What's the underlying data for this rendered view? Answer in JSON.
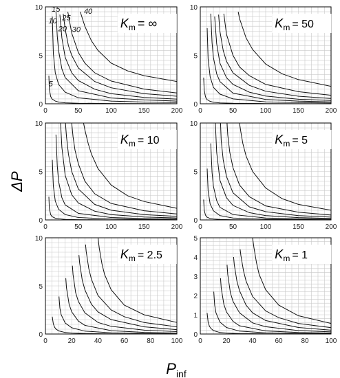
{
  "figure": {
    "ylabel": "ΔP",
    "xlabel_main": "P",
    "xlabel_sub": "inf"
  },
  "chart_data": [
    {
      "type": "line",
      "k_label": "K",
      "k_sub": "m",
      "k_value": "= ∞",
      "xlim": [
        0,
        200
      ],
      "ylim": [
        0,
        10
      ],
      "x_ticks": [
        0,
        50,
        100,
        150,
        200
      ],
      "y_ticks": [
        0,
        5,
        10
      ],
      "curve_labels": [
        "5",
        "10",
        "15",
        "20",
        "25",
        "30",
        "40"
      ],
      "series": [
        {
          "name": "5",
          "x": [
            5.2,
            6,
            8,
            10,
            15,
            20,
            30,
            50,
            100,
            200
          ],
          "y": [
            2.9,
            1.5,
            0.75,
            0.5,
            0.28,
            0.18,
            0.1,
            0.06,
            0.03,
            0.01
          ]
        },
        {
          "name": "10",
          "x": [
            10.5,
            12,
            15,
            20,
            30,
            50,
            100,
            150,
            200
          ],
          "y": [
            9.0,
            5.2,
            3.2,
            2.0,
            1.2,
            0.62,
            0.28,
            0.18,
            0.12
          ]
        },
        {
          "name": "15",
          "x": [
            16,
            18,
            20,
            25,
            30,
            50,
            100,
            150,
            200
          ],
          "y": [
            9.5,
            7.0,
            5.5,
            3.6,
            2.7,
            1.35,
            0.6,
            0.4,
            0.28
          ]
        },
        {
          "name": "20",
          "x": [
            22,
            25,
            30,
            40,
            50,
            75,
            100,
            150,
            200
          ],
          "y": [
            9.2,
            6.8,
            4.8,
            3.2,
            2.4,
            1.5,
            1.05,
            0.65,
            0.48
          ]
        },
        {
          "name": "25",
          "x": [
            27,
            30,
            35,
            40,
            50,
            75,
            100,
            150,
            200
          ],
          "y": [
            9.3,
            7.7,
            6.0,
            5.0,
            3.7,
            2.3,
            1.65,
            1.05,
            0.78
          ]
        },
        {
          "name": "30",
          "x": [
            34,
            40,
            50,
            60,
            75,
            100,
            150,
            200
          ],
          "y": [
            9.5,
            7.3,
            5.3,
            4.2,
            3.2,
            2.35,
            1.52,
            1.12
          ]
        },
        {
          "name": "40",
          "x": [
            53,
            60,
            70,
            80,
            100,
            125,
            150,
            200
          ],
          "y": [
            9.5,
            8.0,
            6.5,
            5.5,
            4.2,
            3.4,
            2.9,
            2.3
          ]
        }
      ]
    },
    {
      "type": "line",
      "k_label": "K",
      "k_sub": "m",
      "k_value": "= 50",
      "xlim": [
        0,
        200
      ],
      "ylim": [
        0,
        10
      ],
      "x_ticks": [
        0,
        50,
        100,
        150,
        200
      ],
      "y_ticks": [
        0,
        5,
        10
      ],
      "series": [
        {
          "name": "5",
          "x": [
            5.2,
            6,
            8,
            10,
            15,
            20,
            30,
            50,
            100,
            200
          ],
          "y": [
            2.7,
            1.4,
            0.7,
            0.45,
            0.25,
            0.16,
            0.09,
            0.05,
            0.02,
            0.01
          ]
        },
        {
          "name": "10",
          "x": [
            10.5,
            12,
            15,
            20,
            30,
            50,
            100,
            150,
            200
          ],
          "y": [
            7.8,
            4.6,
            2.8,
            1.7,
            1.0,
            0.5,
            0.2,
            0.12,
            0.08
          ]
        },
        {
          "name": "15",
          "x": [
            16,
            18,
            20,
            25,
            30,
            50,
            100,
            150,
            200
          ],
          "y": [
            9.3,
            6.3,
            4.8,
            3.1,
            2.3,
            1.1,
            0.45,
            0.28,
            0.19
          ]
        },
        {
          "name": "20",
          "x": [
            22,
            25,
            30,
            40,
            50,
            75,
            100,
            150,
            200
          ],
          "y": [
            9.0,
            6.2,
            4.2,
            2.7,
            2.0,
            1.2,
            0.8,
            0.47,
            0.33
          ]
        },
        {
          "name": "25",
          "x": [
            28,
            30,
            35,
            40,
            50,
            75,
            100,
            150,
            200
          ],
          "y": [
            9.2,
            7.5,
            5.5,
            4.4,
            3.2,
            1.9,
            1.3,
            0.78,
            0.55
          ]
        },
        {
          "name": "30",
          "x": [
            36,
            40,
            50,
            60,
            75,
            100,
            150,
            200
          ],
          "y": [
            9.3,
            7.2,
            5.0,
            3.8,
            2.9,
            2.0,
            1.25,
            0.88
          ]
        },
        {
          "name": "40",
          "x": [
            58,
            60,
            70,
            80,
            100,
            125,
            150,
            200
          ],
          "y": [
            9.5,
            8.8,
            6.8,
            5.6,
            4.1,
            3.1,
            2.5,
            1.8
          ]
        }
      ]
    },
    {
      "type": "line",
      "k_label": "K",
      "k_sub": "m",
      "k_value": "= 10",
      "xlim": [
        0,
        200
      ],
      "ylim": [
        0,
        10
      ],
      "x_ticks": [
        0,
        50,
        100,
        150,
        200
      ],
      "y_ticks": [
        0,
        5,
        10
      ],
      "series": [
        {
          "name": "5",
          "x": [
            5.2,
            6,
            8,
            10,
            15,
            20,
            30,
            50,
            100,
            200
          ],
          "y": [
            2.4,
            1.2,
            0.55,
            0.35,
            0.18,
            0.12,
            0.06,
            0.03,
            0.01,
            0.0
          ]
        },
        {
          "name": "10",
          "x": [
            10.5,
            12,
            15,
            20,
            30,
            50,
            100,
            150,
            200
          ],
          "y": [
            6.2,
            3.5,
            1.95,
            1.1,
            0.55,
            0.25,
            0.1,
            0.05,
            0.03
          ]
        },
        {
          "name": "15",
          "x": [
            16,
            18,
            20,
            25,
            30,
            50,
            100,
            150,
            200
          ],
          "y": [
            8.8,
            5.6,
            4.0,
            2.3,
            1.55,
            0.68,
            0.25,
            0.14,
            0.1
          ]
        },
        {
          "name": "20",
          "x": [
            23,
            25,
            30,
            40,
            50,
            75,
            100,
            150,
            200
          ],
          "y": [
            10,
            7.5,
            4.6,
            2.6,
            1.75,
            0.9,
            0.55,
            0.3,
            0.2
          ]
        },
        {
          "name": "25",
          "x": [
            30.5,
            32,
            35,
            40,
            50,
            75,
            100,
            150,
            200
          ],
          "y": [
            10,
            8.6,
            6.8,
            5.0,
            3.2,
            1.6,
            1.0,
            0.55,
            0.36
          ]
        },
        {
          "name": "30",
          "x": [
            40,
            42,
            45,
            50,
            60,
            75,
            100,
            150,
            200
          ],
          "y": [
            10,
            8.6,
            7.2,
            5.8,
            4.0,
            2.7,
            1.7,
            0.95,
            0.62
          ]
        },
        {
          "name": "40",
          "x": [
            58,
            60,
            65,
            70,
            80,
            100,
            125,
            150,
            200
          ],
          "y": [
            10,
            9.3,
            7.9,
            6.8,
            5.3,
            3.6,
            2.5,
            1.9,
            1.2
          ]
        }
      ]
    },
    {
      "type": "line",
      "k_label": "K",
      "k_sub": "m",
      "k_value": "= 5",
      "xlim": [
        0,
        200
      ],
      "ylim": [
        0,
        10
      ],
      "x_ticks": [
        0,
        50,
        100,
        150,
        200
      ],
      "y_ticks": [
        0,
        5,
        10
      ],
      "series": [
        {
          "name": "5",
          "x": [
            5.2,
            6,
            8,
            10,
            15,
            20,
            30,
            50,
            100,
            200
          ],
          "y": [
            2.1,
            1.0,
            0.48,
            0.3,
            0.15,
            0.1,
            0.05,
            0.02,
            0.01,
            0.0
          ]
        },
        {
          "name": "10",
          "x": [
            10.5,
            12,
            15,
            20,
            30,
            50,
            100,
            150,
            200
          ],
          "y": [
            5.3,
            3.0,
            1.65,
            0.95,
            0.45,
            0.2,
            0.07,
            0.04,
            0.02
          ]
        },
        {
          "name": "15",
          "x": [
            16,
            18,
            20,
            25,
            30,
            50,
            100,
            150,
            200
          ],
          "y": [
            7.9,
            4.9,
            3.5,
            2.0,
            1.3,
            0.55,
            0.2,
            0.11,
            0.07
          ]
        },
        {
          "name": "20",
          "x": [
            23,
            25,
            30,
            40,
            50,
            75,
            100,
            150,
            200
          ],
          "y": [
            10,
            7.0,
            4.1,
            2.3,
            1.5,
            0.75,
            0.45,
            0.24,
            0.15
          ]
        },
        {
          "name": "25",
          "x": [
            31,
            32,
            35,
            40,
            50,
            75,
            100,
            150,
            200
          ],
          "y": [
            10,
            8.2,
            6.2,
            4.5,
            2.8,
            1.35,
            0.85,
            0.45,
            0.29
          ]
        },
        {
          "name": "30",
          "x": [
            41,
            42,
            45,
            50,
            60,
            75,
            100,
            150,
            200
          ],
          "y": [
            10,
            8.8,
            7.0,
            5.4,
            3.6,
            2.4,
            1.45,
            0.8,
            0.5
          ]
        },
        {
          "name": "40",
          "x": [
            60,
            62,
            65,
            70,
            80,
            100,
            125,
            150,
            200
          ],
          "y": [
            10,
            9.1,
            7.9,
            6.6,
            5.0,
            3.3,
            2.2,
            1.6,
            1.0
          ]
        }
      ]
    },
    {
      "type": "line",
      "k_label": "K",
      "k_sub": "m",
      "k_value": "= 2.5",
      "xlim": [
        0,
        100
      ],
      "ylim": [
        0,
        10
      ],
      "x_ticks": [
        0,
        20,
        40,
        60,
        80,
        100
      ],
      "y_ticks": [
        0,
        5,
        10
      ],
      "series": [
        {
          "name": "5",
          "x": [
            5.2,
            6,
            7,
            8,
            10,
            15,
            20,
            30,
            50,
            100
          ],
          "y": [
            1.8,
            1.05,
            0.7,
            0.52,
            0.33,
            0.16,
            0.1,
            0.05,
            0.02,
            0.0
          ]
        },
        {
          "name": "10",
          "x": [
            10.3,
            11,
            12,
            15,
            20,
            30,
            50,
            75,
            100
          ],
          "y": [
            3.9,
            2.7,
            2.0,
            1.15,
            0.65,
            0.3,
            0.12,
            0.06,
            0.03
          ]
        },
        {
          "name": "15",
          "x": [
            15.5,
            16,
            18,
            20,
            25,
            30,
            50,
            75,
            100
          ],
          "y": [
            5.8,
            4.8,
            3.1,
            2.3,
            1.35,
            0.9,
            0.35,
            0.17,
            0.1
          ]
        },
        {
          "name": "20",
          "x": [
            20.5,
            21,
            23,
            25,
            30,
            40,
            50,
            75,
            100
          ],
          "y": [
            7.1,
            6.2,
            4.3,
            3.4,
            2.2,
            1.2,
            0.8,
            0.4,
            0.25
          ]
        },
        {
          "name": "25",
          "x": [
            25.5,
            26,
            28,
            30,
            35,
            40,
            50,
            75,
            100
          ],
          "y": [
            8.2,
            7.4,
            5.6,
            4.6,
            3.1,
            2.3,
            1.5,
            0.75,
            0.45
          ]
        },
        {
          "name": "30",
          "x": [
            30.5,
            31,
            33,
            35,
            40,
            50,
            60,
            75,
            100
          ],
          "y": [
            9.3,
            8.6,
            6.8,
            5.7,
            4.0,
            2.5,
            1.8,
            1.2,
            0.75
          ]
        },
        {
          "name": "40",
          "x": [
            40,
            41,
            43,
            45,
            50,
            60,
            75,
            100
          ],
          "y": [
            10,
            8.9,
            7.3,
            6.2,
            4.6,
            3.0,
            2.0,
            1.2
          ]
        }
      ]
    },
    {
      "type": "line",
      "k_label": "K",
      "k_sub": "m",
      "k_value": "= 1",
      "xlim": [
        0,
        100
      ],
      "ylim": [
        0,
        5
      ],
      "x_ticks": [
        0,
        20,
        40,
        60,
        80,
        100
      ],
      "y_ticks": [
        0,
        1,
        2,
        3,
        4,
        5
      ],
      "series": [
        {
          "name": "5",
          "x": [
            5.2,
            6,
            7,
            8,
            10,
            15,
            20,
            30,
            50,
            100
          ],
          "y": [
            1.1,
            0.62,
            0.4,
            0.3,
            0.18,
            0.08,
            0.05,
            0.02,
            0.01,
            0.0
          ]
        },
        {
          "name": "10",
          "x": [
            10.3,
            11,
            12,
            15,
            20,
            30,
            50,
            75,
            100
          ],
          "y": [
            2.2,
            1.5,
            1.1,
            0.62,
            0.34,
            0.15,
            0.06,
            0.03,
            0.02
          ]
        },
        {
          "name": "15",
          "x": [
            15.5,
            16,
            18,
            20,
            25,
            30,
            50,
            75,
            100
          ],
          "y": [
            2.9,
            2.4,
            1.55,
            1.15,
            0.66,
            0.43,
            0.16,
            0.08,
            0.05
          ]
        },
        {
          "name": "20",
          "x": [
            20.5,
            21,
            23,
            25,
            30,
            40,
            50,
            75,
            100
          ],
          "y": [
            3.6,
            3.1,
            2.15,
            1.7,
            1.1,
            0.58,
            0.38,
            0.18,
            0.11
          ]
        },
        {
          "name": "25",
          "x": [
            25.5,
            26,
            28,
            30,
            35,
            40,
            50,
            75,
            100
          ],
          "y": [
            4.0,
            3.6,
            2.75,
            2.25,
            1.5,
            1.1,
            0.7,
            0.34,
            0.2
          ]
        },
        {
          "name": "30",
          "x": [
            30.5,
            31,
            33,
            35,
            40,
            50,
            60,
            75,
            100
          ],
          "y": [
            4.4,
            4.1,
            3.3,
            2.75,
            1.95,
            1.2,
            0.85,
            0.55,
            0.33
          ]
        },
        {
          "name": "40",
          "x": [
            40,
            41,
            43,
            45,
            50,
            60,
            75,
            100
          ],
          "y": [
            5.0,
            4.5,
            3.7,
            3.1,
            2.3,
            1.5,
            0.95,
            0.55
          ]
        }
      ]
    }
  ]
}
